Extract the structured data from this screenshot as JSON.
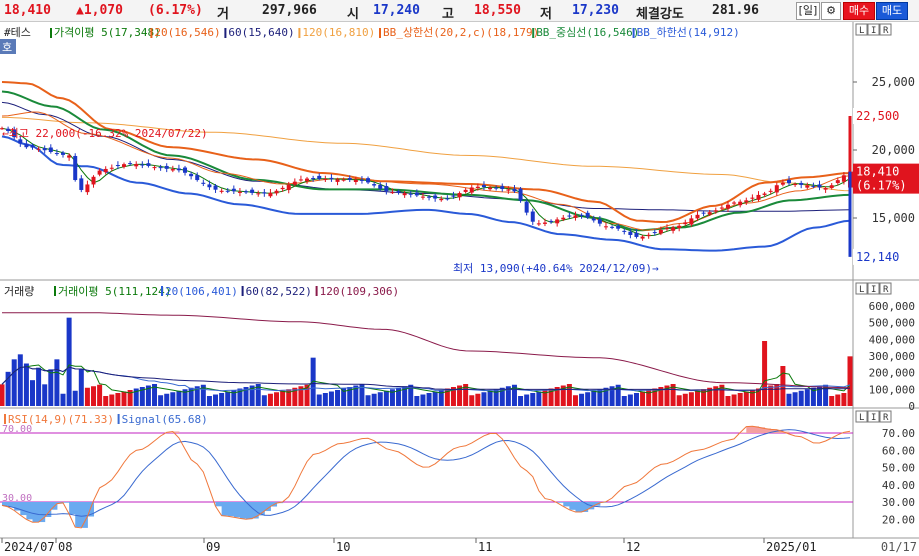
{
  "header": {
    "price": "18,410",
    "change": "▲1,070",
    "change_pct": "(6.17%)",
    "volume_label": "거",
    "volume": "297,966",
    "open_label": "시",
    "open": "17,240",
    "high_label": "고",
    "high": "18,550",
    "low_label": "저",
    "low": "17,230",
    "strength_label": "체결강도",
    "strength": "281.96",
    "period_button": "[일]",
    "settings_icon": "gear-icon",
    "buy_button": "매수",
    "sell_button": "매도"
  },
  "colors": {
    "up": "#e0141e",
    "down": "#1a37c8",
    "ma5": "#0c7a0c",
    "ma20": "#e8611a",
    "ma60": "#1c1f7a",
    "ma120": "#f0a040",
    "bb_mid": "#1a8a3a",
    "bb_low": "#2a5ad8",
    "rsi": "#f0783c",
    "signal": "#3a6ad0",
    "rsi_level": "#c020c0"
  },
  "price_panel": {
    "title": "#테스",
    "tag": "호",
    "legend": [
      {
        "text": "가격이평 5(17,348)",
        "color": "#0c7a0c"
      },
      {
        "text": "20(16,546)",
        "color": "#e8611a"
      },
      {
        "text": "60(15,640)",
        "color": "#1c1f7a"
      },
      {
        "text": "120(16,810)",
        "color": "#f0a040"
      },
      {
        "text": "BB_상한선(20,2,c)(18,179)",
        "color": "#e8611a"
      },
      {
        "text": "BB_중심선(16,546)",
        "color": "#1a8a3a"
      },
      {
        "text": "BB_하한선(14,912)",
        "color": "#2a5ad8"
      }
    ],
    "y_ticks": [
      "25,000",
      "20,000",
      "15,000"
    ],
    "high_annotation": "←최고 22,000(-16.32% 2024/07/22)",
    "low_annotation": "최저 13,090(+40.64% 2024/12/09)→",
    "marker_high": "22,500",
    "marker_current": "18,410",
    "marker_current_pct": "(6.17%)",
    "marker_low": "12,140"
  },
  "volume_panel": {
    "legend": [
      {
        "text": "거래량",
        "color": "#222222"
      },
      {
        "text": "거래이평 5(111,124)",
        "color": "#0c7a0c"
      },
      {
        "text": "20(106,401)",
        "color": "#2a5ad8"
      },
      {
        "text": "60(82,522)",
        "color": "#1c1f7a"
      },
      {
        "text": "120(109,306)",
        "color": "#8a1a4a"
      }
    ],
    "y_ticks": [
      "600,000",
      "500,000",
      "400,000",
      "300,000",
      "200,000",
      "100,000",
      "0"
    ]
  },
  "rsi_panel": {
    "legend": [
      {
        "text": "RSI(14,9)(71.33)",
        "color": "#f0783c"
      },
      {
        "text": "Signal(65.68)",
        "color": "#3a6ad0"
      }
    ],
    "level_high": "70.00",
    "level_low": "30.00",
    "y_ticks": [
      "70.00",
      "60.00",
      "50.00",
      "40.00",
      "30.00",
      "20.00"
    ]
  },
  "panel_buttons": [
    "L",
    "I",
    "R"
  ],
  "x_axis": {
    "labels": [
      "2024/07",
      "08",
      "09",
      "10",
      "11",
      "12",
      "2025/01"
    ],
    "end_label": "01/17"
  },
  "chart_data": {
    "type": "candlestick",
    "y_range": [
      12100,
      27500
    ],
    "price_ma": [
      {
        "name": "가격이평 5",
        "last": 17348
      },
      {
        "name": "20",
        "last": 16546
      },
      {
        "name": "60",
        "last": 15640
      },
      {
        "name": "120",
        "last": 16810
      }
    ],
    "bollinger": {
      "upper": 18179,
      "middle": 16546,
      "lower": 14912
    },
    "rsi_last": 71.33,
    "signal_last": 65.68,
    "high_price": 22000,
    "low_price": 13090
  }
}
